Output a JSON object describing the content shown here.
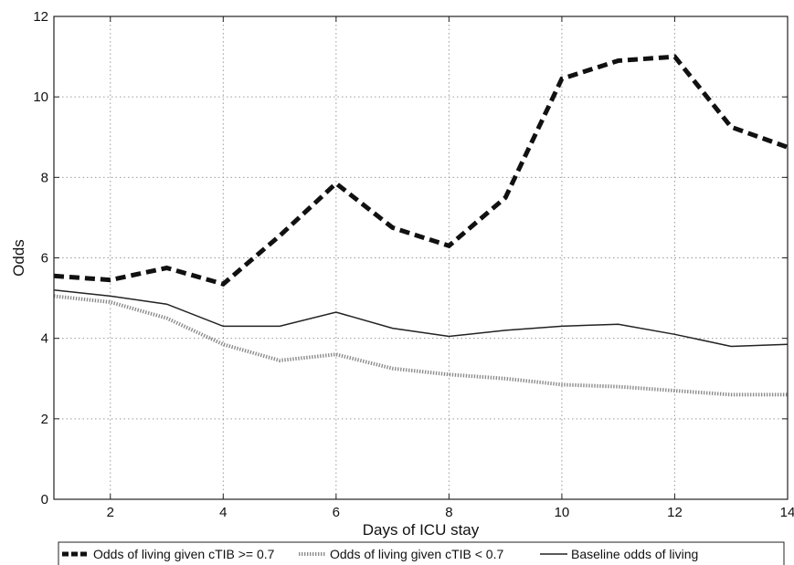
{
  "chart_data": {
    "type": "line",
    "xlabel": "Days of ICU stay",
    "ylabel": "Odds",
    "xlim": [
      1,
      14
    ],
    "ylim": [
      0,
      12
    ],
    "x_ticks": [
      2,
      4,
      6,
      8,
      10,
      12,
      14
    ],
    "y_ticks": [
      0,
      2,
      4,
      6,
      8,
      10,
      12
    ],
    "grid": true,
    "legend_position": "bottom",
    "x": [
      1,
      2,
      3,
      4,
      5,
      6,
      7,
      8,
      9,
      10,
      11,
      12,
      13,
      14
    ],
    "series": [
      {
        "name": "Odds of living given cTIB >= 0.7",
        "style": "dashed-thick",
        "color": "#111111",
        "values": [
          5.55,
          5.45,
          5.75,
          5.35,
          6.55,
          7.85,
          6.75,
          6.3,
          7.5,
          10.45,
          10.9,
          11.0,
          9.25,
          8.75
        ]
      },
      {
        "name": "Odds of living given cTIB < 0.7",
        "style": "dotted",
        "color": "#8c8c8c",
        "values": [
          5.05,
          4.9,
          4.5,
          3.85,
          3.45,
          3.6,
          3.25,
          3.1,
          3.0,
          2.85,
          2.8,
          2.7,
          2.6,
          2.6
        ]
      },
      {
        "name": "Baseline odds of living",
        "style": "solid",
        "color": "#222222",
        "values": [
          5.2,
          5.05,
          4.85,
          4.3,
          4.3,
          4.65,
          4.25,
          4.05,
          4.2,
          4.3,
          4.35,
          4.1,
          3.8,
          3.85
        ]
      }
    ]
  }
}
